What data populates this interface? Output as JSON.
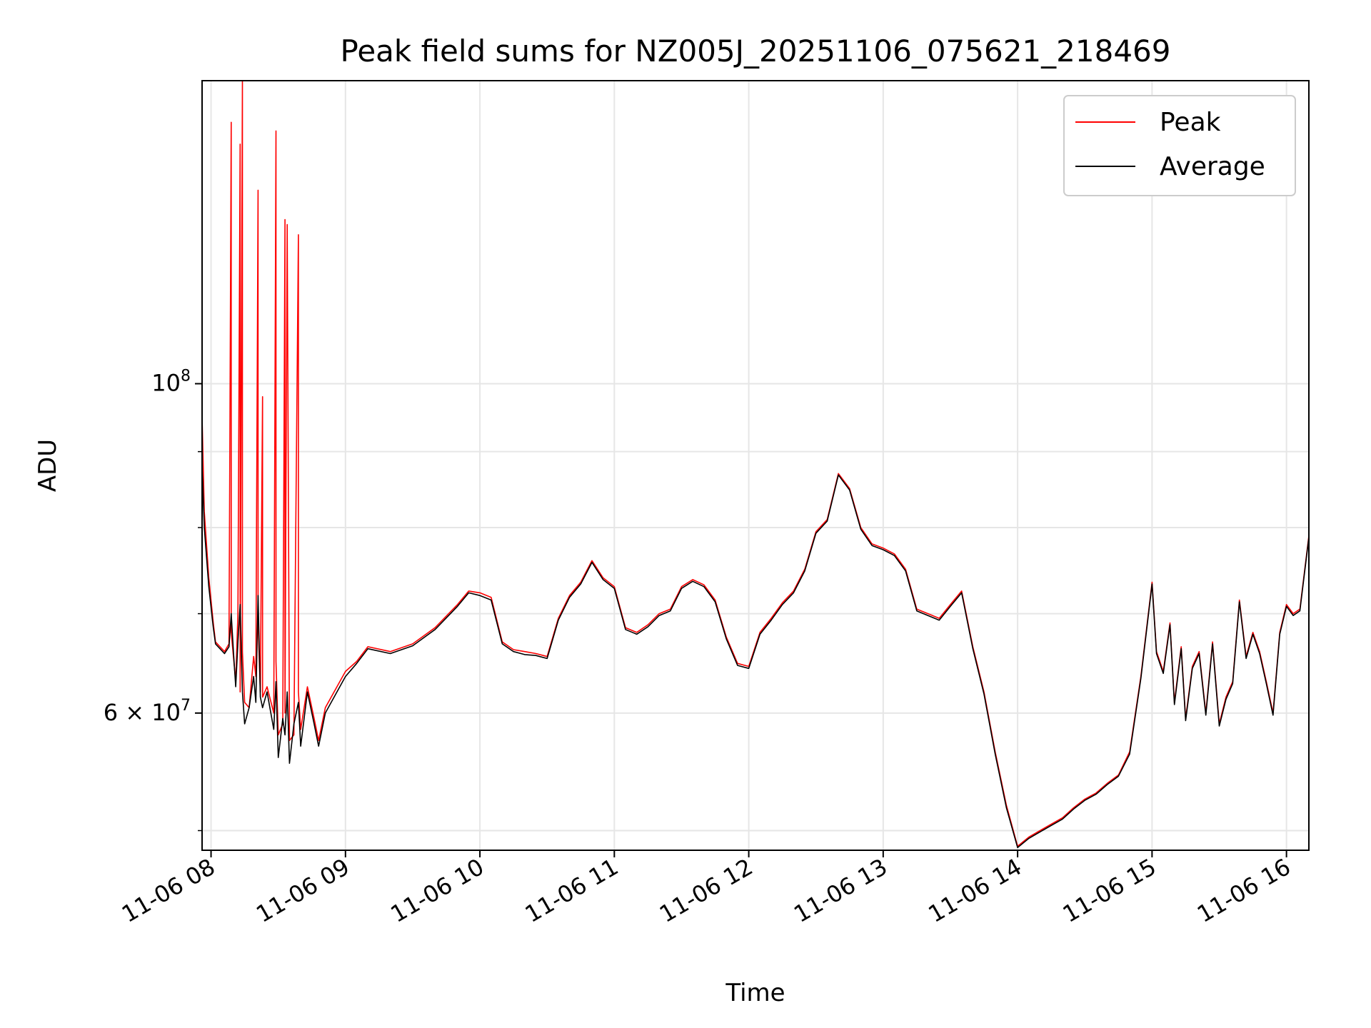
{
  "chart_data": {
    "type": "line",
    "title": "Peak field sums for NZ005J_20251106_075621_218469",
    "xlabel": "Time",
    "ylabel": "ADU",
    "xlim": [
      "2025-11-06 07:56",
      "2025-11-06 16:10"
    ],
    "ylim": [
      48500000,
      160000000
    ],
    "y_scale": "log",
    "grid": true,
    "legend_position": "top-right",
    "x_ticks": [
      "11-06 08",
      "11-06 09",
      "11-06 10",
      "11-06 11",
      "11-06 12",
      "11-06 13",
      "11-06 14",
      "11-06 15",
      "11-06 16"
    ],
    "x_tick_times": [
      "2025-11-06 08:00",
      "2025-11-06 09:00",
      "2025-11-06 10:00",
      "2025-11-06 11:00",
      "2025-11-06 12:00",
      "2025-11-06 13:00",
      "2025-11-06 14:00",
      "2025-11-06 15:00",
      "2025-11-06 16:00"
    ],
    "y_major_ticks": [
      {
        "value": 100000000,
        "base": "10",
        "exp": "8"
      },
      {
        "value": 60000000,
        "base": "6 × 10",
        "exp": "7"
      }
    ],
    "y_minor_ticks": [
      50000000,
      70000000,
      80000000,
      90000000,
      200000000
    ],
    "series": [
      {
        "name": "Peak",
        "color": "#ff0000",
        "points": [
          [
            "07:56",
            95000000
          ],
          [
            "07:57",
            82000000
          ],
          [
            "07:59",
            74000000
          ],
          [
            "08:01",
            69000000
          ],
          [
            "08:02",
            67000000
          ],
          [
            "08:04",
            66500000
          ],
          [
            "08:06",
            66000000
          ],
          [
            "08:08",
            66800000
          ],
          [
            "08:09",
            150000000
          ],
          [
            "08:09",
            68000000
          ],
          [
            "08:11",
            63000000
          ],
          [
            "08:12",
            70000000
          ],
          [
            "08:13",
            145000000
          ],
          [
            "08:13",
            62000000
          ],
          [
            "08:14",
            160000000
          ],
          [
            "08:14",
            66000000
          ],
          [
            "08:15",
            61000000
          ],
          [
            "08:17",
            60500000
          ],
          [
            "08:19",
            65500000
          ],
          [
            "08:20",
            63500000
          ],
          [
            "08:21",
            135000000
          ],
          [
            "08:21",
            69000000
          ],
          [
            "08:22",
            62000000
          ],
          [
            "08:23",
            98000000
          ],
          [
            "08:23",
            61500000
          ],
          [
            "08:25",
            62500000
          ],
          [
            "08:28",
            60000000
          ],
          [
            "08:29",
            148000000
          ],
          [
            "08:29",
            65000000
          ],
          [
            "08:30",
            58000000
          ],
          [
            "08:32",
            59000000
          ],
          [
            "08:33",
            129000000
          ],
          [
            "08:33",
            60000000
          ],
          [
            "08:34",
            128000000
          ],
          [
            "08:35",
            57500000
          ],
          [
            "08:37",
            58000000
          ],
          [
            "08:39",
            126000000
          ],
          [
            "08:39",
            62000000
          ],
          [
            "08:40",
            58500000
          ],
          [
            "08:43",
            62500000
          ],
          [
            "08:46",
            59500000
          ],
          [
            "08:48",
            57500000
          ],
          [
            "08:51",
            60500000
          ],
          [
            "09:00",
            64000000
          ],
          [
            "09:05",
            65000000
          ],
          [
            "09:10",
            66500000
          ],
          [
            "09:20",
            66000000
          ],
          [
            "09:30",
            66800000
          ],
          [
            "09:40",
            68500000
          ],
          [
            "09:50",
            71000000
          ],
          [
            "09:55",
            72500000
          ],
          [
            "10:00",
            72300000
          ],
          [
            "10:05",
            71800000
          ],
          [
            "10:10",
            67000000
          ],
          [
            "10:15",
            66200000
          ],
          [
            "10:20",
            66000000
          ],
          [
            "10:25",
            65800000
          ],
          [
            "10:30",
            65500000
          ],
          [
            "10:35",
            69500000
          ],
          [
            "10:40",
            72000000
          ],
          [
            "10:45",
            73500000
          ],
          [
            "10:50",
            76000000
          ],
          [
            "10:55",
            74000000
          ],
          [
            "11:00",
            73000000
          ],
          [
            "11:05",
            68500000
          ],
          [
            "11:10",
            68000000
          ],
          [
            "11:15",
            68800000
          ],
          [
            "11:20",
            70000000
          ],
          [
            "11:25",
            70500000
          ],
          [
            "11:30",
            73000000
          ],
          [
            "11:35",
            73800000
          ],
          [
            "11:40",
            73200000
          ],
          [
            "11:45",
            71500000
          ],
          [
            "11:50",
            67500000
          ],
          [
            "11:55",
            64800000
          ],
          [
            "12:00",
            64500000
          ],
          [
            "12:05",
            68000000
          ],
          [
            "12:10",
            69500000
          ],
          [
            "12:15",
            71200000
          ],
          [
            "12:20",
            72500000
          ],
          [
            "12:25",
            75000000
          ],
          [
            "12:30",
            79500000
          ],
          [
            "12:35",
            81000000
          ],
          [
            "12:40",
            87000000
          ],
          [
            "12:45",
            85000000
          ],
          [
            "12:50",
            80000000
          ],
          [
            "12:55",
            78000000
          ],
          [
            "13:00",
            77500000
          ],
          [
            "13:05",
            76800000
          ],
          [
            "13:10",
            75000000
          ],
          [
            "13:15",
            70500000
          ],
          [
            "13:20",
            70000000
          ],
          [
            "13:25",
            69500000
          ],
          [
            "13:30",
            71000000
          ],
          [
            "13:35",
            72500000
          ],
          [
            "13:40",
            66500000
          ],
          [
            "13:45",
            62000000
          ],
          [
            "13:50",
            56500000
          ],
          [
            "13:55",
            52000000
          ],
          [
            "14:00",
            48800000
          ],
          [
            "14:05",
            49500000
          ],
          [
            "14:10",
            50000000
          ],
          [
            "14:15",
            50500000
          ],
          [
            "14:20",
            51000000
          ],
          [
            "14:25",
            51800000
          ],
          [
            "14:30",
            52500000
          ],
          [
            "14:35",
            53000000
          ],
          [
            "14:40",
            53800000
          ],
          [
            "14:45",
            54500000
          ],
          [
            "14:50",
            56500000
          ],
          [
            "14:55",
            63500000
          ],
          [
            "15:00",
            73500000
          ],
          [
            "15:02",
            66000000
          ],
          [
            "15:05",
            64000000
          ],
          [
            "15:08",
            69000000
          ],
          [
            "15:10",
            61000000
          ],
          [
            "15:13",
            66500000
          ],
          [
            "15:15",
            59500000
          ],
          [
            "15:18",
            64500000
          ],
          [
            "15:21",
            66000000
          ],
          [
            "15:24",
            60000000
          ],
          [
            "15:27",
            67000000
          ],
          [
            "15:30",
            59000000
          ],
          [
            "15:33",
            61500000
          ],
          [
            "15:36",
            63000000
          ],
          [
            "15:39",
            71500000
          ],
          [
            "15:42",
            65500000
          ],
          [
            "15:45",
            68000000
          ],
          [
            "15:48",
            66000000
          ],
          [
            "15:51",
            63000000
          ],
          [
            "15:54",
            60000000
          ],
          [
            "15:57",
            68000000
          ],
          [
            "16:00",
            71000000
          ],
          [
            "16:03",
            70000000
          ],
          [
            "16:06",
            70500000
          ],
          [
            "16:10",
            79000000
          ]
        ]
      },
      {
        "name": "Average",
        "color": "#000000",
        "points": [
          [
            "07:56",
            88000000
          ],
          [
            "07:57",
            80000000
          ],
          [
            "07:59",
            73000000
          ],
          [
            "08:01",
            68500000
          ],
          [
            "08:02",
            66800000
          ],
          [
            "08:04",
            66300000
          ],
          [
            "08:06",
            65800000
          ],
          [
            "08:08",
            66500000
          ],
          [
            "08:09",
            70000000
          ],
          [
            "08:10",
            66000000
          ],
          [
            "08:11",
            62500000
          ],
          [
            "08:12",
            67000000
          ],
          [
            "08:13",
            71000000
          ],
          [
            "08:14",
            62000000
          ],
          [
            "08:15",
            59000000
          ],
          [
            "08:17",
            60500000
          ],
          [
            "08:19",
            63500000
          ],
          [
            "08:20",
            61000000
          ],
          [
            "08:21",
            72000000
          ],
          [
            "08:22",
            61500000
          ],
          [
            "08:23",
            60500000
          ],
          [
            "08:25",
            62000000
          ],
          [
            "08:28",
            58500000
          ],
          [
            "08:29",
            63000000
          ],
          [
            "08:30",
            56000000
          ],
          [
            "08:32",
            59500000
          ],
          [
            "08:33",
            58000000
          ],
          [
            "08:34",
            62000000
          ],
          [
            "08:35",
            55500000
          ],
          [
            "08:37",
            59000000
          ],
          [
            "08:39",
            61000000
          ],
          [
            "08:40",
            57000000
          ],
          [
            "08:43",
            62000000
          ],
          [
            "08:46",
            59000000
          ],
          [
            "08:48",
            57000000
          ],
          [
            "08:51",
            60000000
          ],
          [
            "09:00",
            63500000
          ],
          [
            "09:05",
            64800000
          ],
          [
            "09:10",
            66300000
          ],
          [
            "09:20",
            65800000
          ],
          [
            "09:30",
            66600000
          ],
          [
            "09:40",
            68300000
          ],
          [
            "09:50",
            70800000
          ],
          [
            "09:55",
            72300000
          ],
          [
            "10:00",
            72000000
          ],
          [
            "10:05",
            71500000
          ],
          [
            "10:10",
            66800000
          ],
          [
            "10:15",
            66000000
          ],
          [
            "10:20",
            65700000
          ],
          [
            "10:25",
            65600000
          ],
          [
            "10:30",
            65300000
          ],
          [
            "10:35",
            69300000
          ],
          [
            "10:40",
            71800000
          ],
          [
            "10:45",
            73300000
          ],
          [
            "10:50",
            75800000
          ],
          [
            "10:55",
            73800000
          ],
          [
            "11:00",
            72800000
          ],
          [
            "11:05",
            68300000
          ],
          [
            "11:10",
            67800000
          ],
          [
            "11:15",
            68600000
          ],
          [
            "11:20",
            69800000
          ],
          [
            "11:25",
            70300000
          ],
          [
            "11:30",
            72800000
          ],
          [
            "11:35",
            73600000
          ],
          [
            "11:40",
            73000000
          ],
          [
            "11:45",
            71300000
          ],
          [
            "11:50",
            67300000
          ],
          [
            "11:55",
            64600000
          ],
          [
            "12:00",
            64300000
          ],
          [
            "12:05",
            67800000
          ],
          [
            "12:10",
            69300000
          ],
          [
            "12:15",
            71000000
          ],
          [
            "12:20",
            72300000
          ],
          [
            "12:25",
            74800000
          ],
          [
            "12:30",
            79300000
          ],
          [
            "12:35",
            80800000
          ],
          [
            "12:40",
            86800000
          ],
          [
            "12:45",
            84800000
          ],
          [
            "12:50",
            79800000
          ],
          [
            "12:55",
            77800000
          ],
          [
            "13:00",
            77300000
          ],
          [
            "13:05",
            76600000
          ],
          [
            "13:10",
            74800000
          ],
          [
            "13:15",
            70300000
          ],
          [
            "13:20",
            69800000
          ],
          [
            "13:25",
            69300000
          ],
          [
            "13:30",
            70800000
          ],
          [
            "13:35",
            72300000
          ],
          [
            "13:40",
            66300000
          ],
          [
            "13:45",
            61800000
          ],
          [
            "13:50",
            56300000
          ],
          [
            "13:55",
            51800000
          ],
          [
            "14:00",
            48700000
          ],
          [
            "14:05",
            49400000
          ],
          [
            "14:10",
            49900000
          ],
          [
            "14:15",
            50400000
          ],
          [
            "14:20",
            50900000
          ],
          [
            "14:25",
            51700000
          ],
          [
            "14:30",
            52400000
          ],
          [
            "14:35",
            52900000
          ],
          [
            "14:40",
            53700000
          ],
          [
            "14:45",
            54400000
          ],
          [
            "14:50",
            56300000
          ],
          [
            "14:55",
            63300000
          ],
          [
            "15:00",
            73300000
          ],
          [
            "15:02",
            65800000
          ],
          [
            "15:05",
            63800000
          ],
          [
            "15:08",
            68800000
          ],
          [
            "15:10",
            60800000
          ],
          [
            "15:13",
            66300000
          ],
          [
            "15:15",
            59300000
          ],
          [
            "15:18",
            64300000
          ],
          [
            "15:21",
            65800000
          ],
          [
            "15:24",
            59800000
          ],
          [
            "15:27",
            66800000
          ],
          [
            "15:30",
            58800000
          ],
          [
            "15:33",
            61300000
          ],
          [
            "15:36",
            62800000
          ],
          [
            "15:39",
            71300000
          ],
          [
            "15:42",
            65300000
          ],
          [
            "15:45",
            67800000
          ],
          [
            "15:48",
            65800000
          ],
          [
            "15:51",
            62800000
          ],
          [
            "15:54",
            59800000
          ],
          [
            "15:57",
            67800000
          ],
          [
            "16:00",
            70800000
          ],
          [
            "16:03",
            69800000
          ],
          [
            "16:06",
            70300000
          ],
          [
            "16:10",
            78800000
          ]
        ]
      }
    ]
  }
}
